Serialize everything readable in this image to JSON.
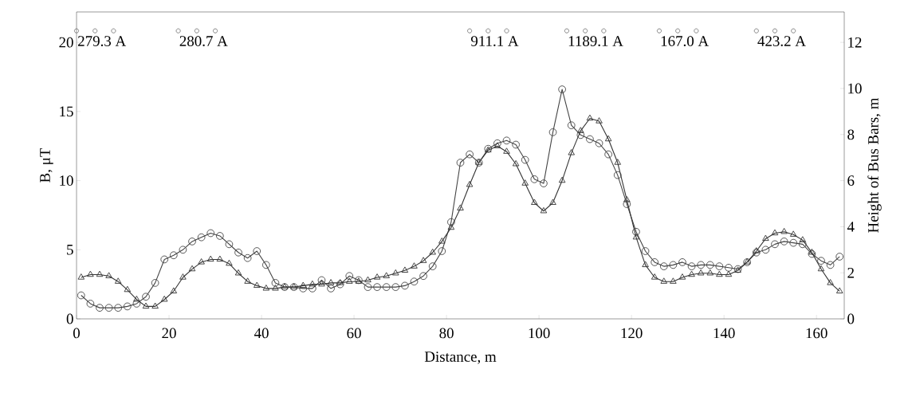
{
  "chart_data": {
    "type": "line",
    "xlabel": "Distance, m",
    "ylabel": "B, μT",
    "y2label": "Height of Bus Bars, m",
    "x": [
      1,
      3,
      5,
      7,
      9,
      11,
      13,
      15,
      17,
      19,
      21,
      23,
      25,
      27,
      29,
      31,
      33,
      35,
      37,
      39,
      41,
      43,
      45,
      47,
      49,
      51,
      53,
      55,
      57,
      59,
      61,
      63,
      65,
      67,
      69,
      71,
      73,
      75,
      77,
      79,
      81,
      83,
      85,
      87,
      89,
      91,
      93,
      95,
      97,
      99,
      101,
      103,
      105,
      107,
      109,
      111,
      113,
      115,
      117,
      119,
      121,
      123,
      125,
      127,
      129,
      131,
      133,
      135,
      137,
      139,
      141,
      143,
      145,
      147,
      149,
      151,
      153,
      155,
      157,
      159,
      161,
      163,
      165
    ],
    "series": [
      {
        "color": "#444444",
        "marker": "circle",
        "values": [
          1.7,
          1.1,
          0.8,
          0.8,
          0.8,
          0.9,
          1.1,
          1.6,
          2.6,
          4.3,
          4.6,
          5.0,
          5.6,
          5.9,
          6.2,
          6.0,
          5.4,
          4.8,
          4.4,
          4.9,
          3.9,
          2.6,
          2.3,
          2.3,
          2.2,
          2.2,
          2.8,
          2.2,
          2.5,
          3.1,
          2.8,
          2.3,
          2.3,
          2.3,
          2.3,
          2.4,
          2.7,
          3.1,
          3.8,
          4.9,
          7.0,
          11.3,
          11.9,
          11.3,
          12.3,
          12.7,
          12.9,
          12.6,
          11.5,
          10.1,
          9.8,
          13.5,
          16.6,
          14.0,
          13.3,
          13.0,
          12.7,
          11.9,
          10.4,
          8.3,
          6.3,
          4.9,
          4.1,
          3.8,
          3.9,
          4.1,
          3.8,
          3.9,
          3.9,
          3.8,
          3.7,
          3.6,
          4.1,
          4.8,
          5.0,
          5.4,
          5.6,
          5.5,
          5.4,
          4.7,
          4.2,
          3.9,
          4.5
        ]
      },
      {
        "color": "#333333",
        "marker": "triangle",
        "values": [
          3.0,
          3.2,
          3.2,
          3.1,
          2.7,
          2.1,
          1.4,
          0.9,
          0.9,
          1.4,
          2.0,
          3.0,
          3.6,
          4.1,
          4.3,
          4.3,
          4.0,
          3.3,
          2.7,
          2.4,
          2.2,
          2.2,
          2.3,
          2.3,
          2.4,
          2.5,
          2.5,
          2.6,
          2.6,
          2.7,
          2.7,
          2.8,
          3.0,
          3.1,
          3.3,
          3.5,
          3.8,
          4.2,
          4.8,
          5.6,
          6.6,
          8.0,
          9.7,
          11.3,
          12.2,
          12.5,
          12.1,
          11.2,
          9.8,
          8.4,
          7.8,
          8.4,
          10.0,
          12.0,
          13.6,
          14.5,
          14.3,
          13.0,
          11.3,
          8.6,
          5.9,
          3.9,
          3.0,
          2.7,
          2.7,
          3.0,
          3.2,
          3.3,
          3.3,
          3.2,
          3.2,
          3.5,
          4.1,
          4.9,
          5.8,
          6.2,
          6.3,
          6.1,
          5.7,
          4.8,
          3.6,
          2.6,
          2.0
        ]
      },
      {
        "type": "scatter",
        "axis": "y2",
        "color": "#777777",
        "marker": "circle",
        "x": [
          0,
          4,
          8,
          22,
          26,
          30,
          85,
          89,
          93,
          106,
          110,
          114,
          126,
          130,
          134,
          147,
          151,
          155
        ],
        "values": [
          12.5,
          12.5,
          12.5,
          12.5,
          12.5,
          12.5,
          12.5,
          12.5,
          12.5,
          12.5,
          12.5,
          12.5,
          12.5,
          12.5,
          12.5,
          12.5,
          12.5,
          12.5
        ]
      }
    ],
    "annotations": [
      "279.3 A",
      "280.7 A",
      "911.1 A",
      "1189.1 A",
      "167.0 A",
      "423.2 A"
    ],
    "xlim": [
      0,
      166
    ],
    "ylim": [
      0,
      22.2
    ],
    "y2lim": [
      0,
      13.32
    ],
    "xticks": [
      0,
      20,
      40,
      60,
      80,
      100,
      120,
      140,
      160
    ],
    "yticks": [
      0,
      5,
      10,
      15,
      20
    ],
    "y2ticks": [
      0,
      2,
      4,
      6,
      8,
      10,
      12
    ],
    "grid": false
  }
}
